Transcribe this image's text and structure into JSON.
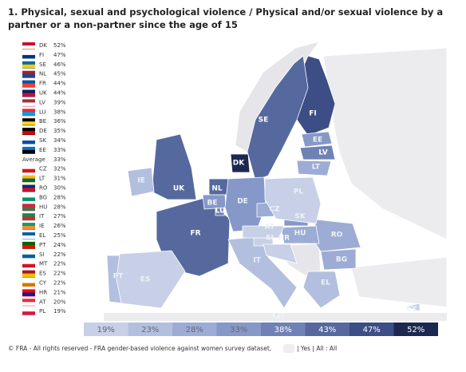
{
  "title": "1. Physical, sexual and psychological violence / Physical and/or sexual violence by a partner or a non-partner since the age of 15",
  "ranking": [
    {
      "code": "DK",
      "value": 52,
      "label": "52%"
    },
    {
      "code": "FI",
      "value": 47,
      "label": "47%"
    },
    {
      "code": "SE",
      "value": 46,
      "label": "46%"
    },
    {
      "code": "NL",
      "value": 45,
      "label": "45%"
    },
    {
      "code": "FR",
      "value": 44,
      "label": "44%"
    },
    {
      "code": "UK",
      "value": 44,
      "label": "44%"
    },
    {
      "code": "LV",
      "value": 39,
      "label": "39%"
    },
    {
      "code": "LU",
      "value": 38,
      "label": "38%"
    },
    {
      "code": "BE",
      "value": 36,
      "label": "36%"
    },
    {
      "code": "DE",
      "value": 35,
      "label": "35%"
    },
    {
      "code": "SK",
      "value": 34,
      "label": "34%"
    },
    {
      "code": "EE",
      "value": 33,
      "label": "33%"
    },
    {
      "code": "Average",
      "value": 33,
      "label": "33%"
    },
    {
      "code": "CZ",
      "value": 32,
      "label": "32%"
    },
    {
      "code": "LT",
      "value": 31,
      "label": "31%"
    },
    {
      "code": "RO",
      "value": 30,
      "label": "30%"
    },
    {
      "code": "BG",
      "value": 28,
      "label": "28%"
    },
    {
      "code": "HU",
      "value": 28,
      "label": "28%"
    },
    {
      "code": "IT",
      "value": 27,
      "label": "27%"
    },
    {
      "code": "IE",
      "value": 26,
      "label": "26%"
    },
    {
      "code": "EL",
      "value": 25,
      "label": "25%"
    },
    {
      "code": "PT",
      "value": 24,
      "label": "24%"
    },
    {
      "code": "SI",
      "value": 22,
      "label": "22%"
    },
    {
      "code": "MT",
      "value": 22,
      "label": "22%"
    },
    {
      "code": "ES",
      "value": 22,
      "label": "22%"
    },
    {
      "code": "CY",
      "value": 22,
      "label": "22%"
    },
    {
      "code": "HR",
      "value": 21,
      "label": "21%"
    },
    {
      "code": "AT",
      "value": 20,
      "label": "20%"
    },
    {
      "code": "PL",
      "value": 19,
      "label": "19%"
    }
  ],
  "legend": [
    {
      "value": 19,
      "label": "19%",
      "color": "#c7d0e6"
    },
    {
      "value": 23,
      "label": "23%",
      "color": "#b3bfdf"
    },
    {
      "value": 28,
      "label": "28%",
      "color": "#9dacd5"
    },
    {
      "value": 33,
      "label": "33%",
      "color": "#8698c8"
    },
    {
      "value": 38,
      "label": "38%",
      "color": "#6f82b6"
    },
    {
      "value": 43,
      "label": "43%",
      "color": "#55699f"
    },
    {
      "value": 47,
      "label": "47%",
      "color": "#3c4e85"
    },
    {
      "value": 52,
      "label": "52%",
      "color": "#1c2850"
    }
  ],
  "footer": "© FRA - All rights reserved - FRA gender-based violence against women survey dataset,",
  "footer_tail": "| Yes | All : All"
}
